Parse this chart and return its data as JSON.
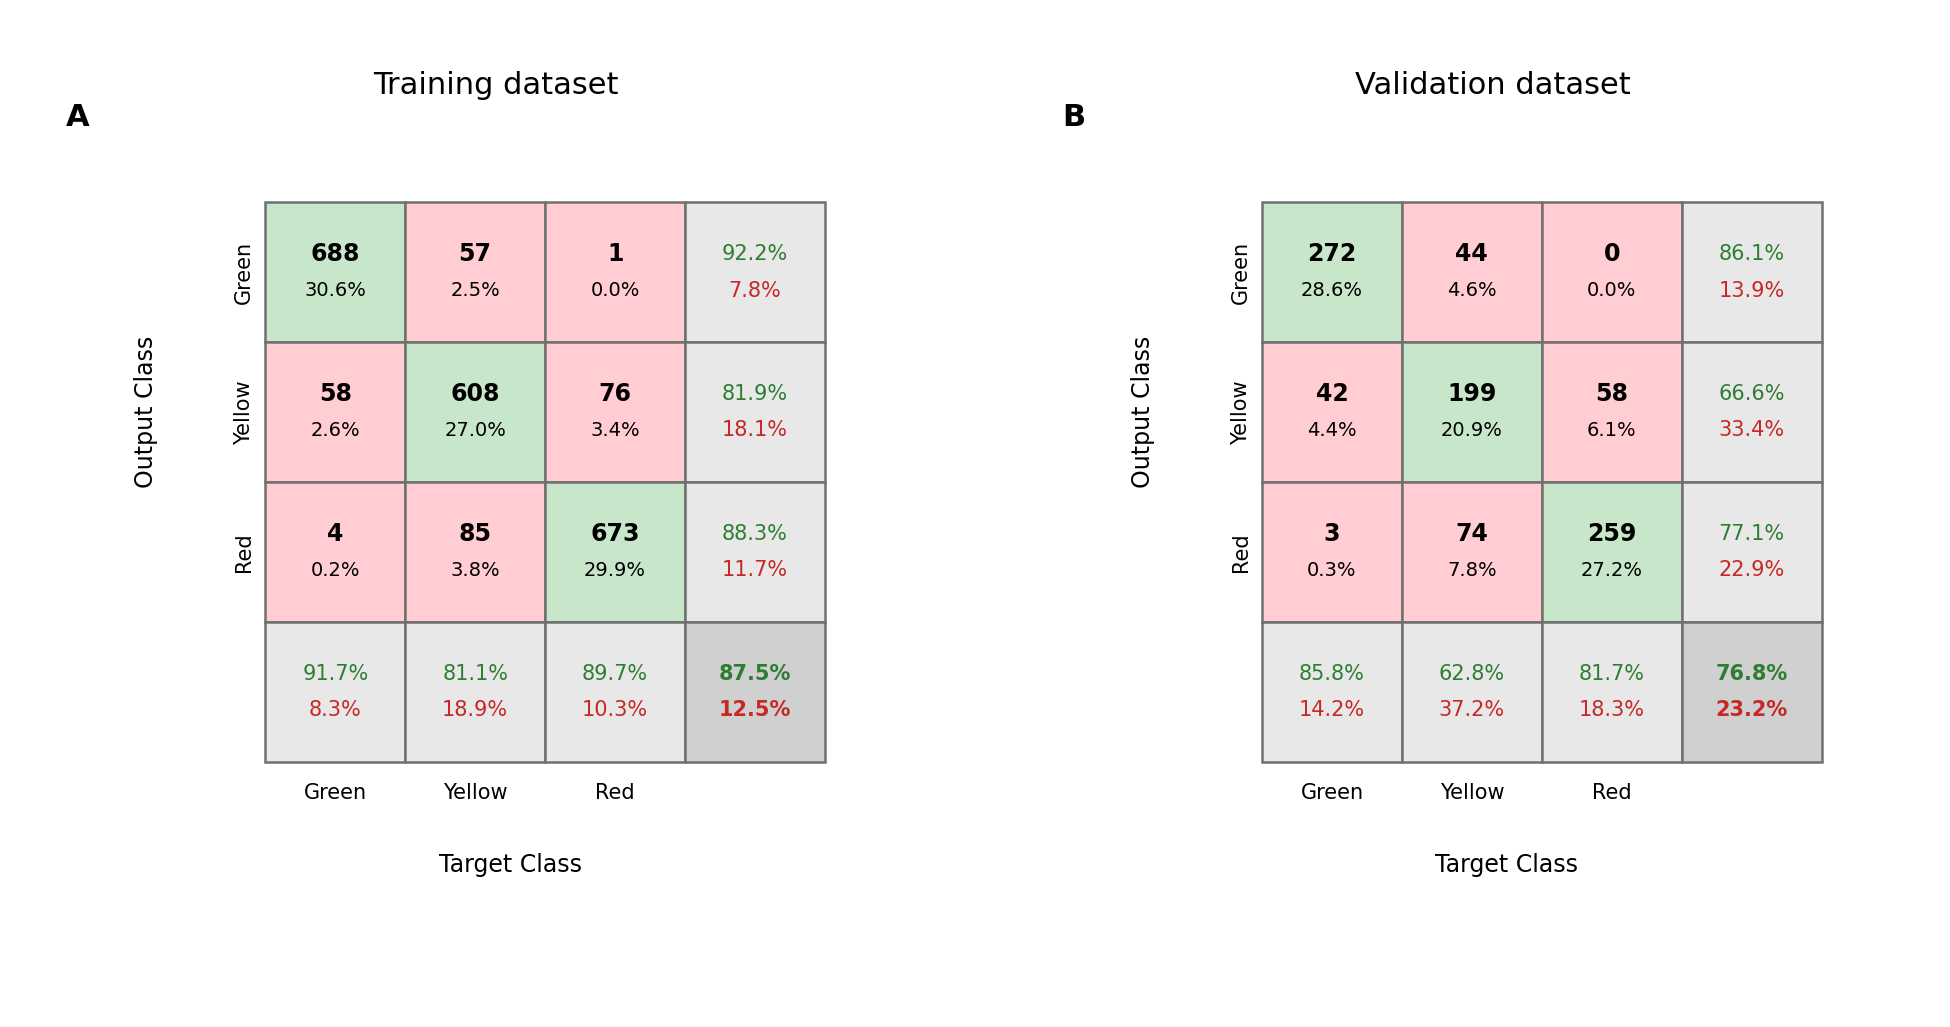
{
  "training": {
    "title": "Training dataset",
    "panel_label": "A",
    "matrix": [
      [
        688,
        57,
        1
      ],
      [
        58,
        608,
        76
      ],
      [
        4,
        85,
        673
      ]
    ],
    "matrix_pct": [
      [
        "30.6%",
        "2.5%",
        "0.0%"
      ],
      [
        "2.6%",
        "27.0%",
        "3.4%"
      ],
      [
        "0.2%",
        "3.8%",
        "29.9%"
      ]
    ],
    "row_pct_green": [
      "92.2%",
      "81.9%",
      "88.3%"
    ],
    "row_pct_red": [
      "7.8%",
      "18.1%",
      "11.7%"
    ],
    "col_pct_green": [
      "91.7%",
      "81.1%",
      "89.7%"
    ],
    "col_pct_red": [
      "8.3%",
      "18.9%",
      "10.3%"
    ],
    "overall_green": "87.5%",
    "overall_red": "12.5%",
    "overall_bold": true
  },
  "validation": {
    "title": "Validation dataset",
    "panel_label": "B",
    "matrix": [
      [
        272,
        44,
        0
      ],
      [
        42,
        199,
        58
      ],
      [
        3,
        74,
        259
      ]
    ],
    "matrix_pct": [
      [
        "28.6%",
        "4.6%",
        "0.0%"
      ],
      [
        "4.4%",
        "20.9%",
        "6.1%"
      ],
      [
        "0.3%",
        "7.8%",
        "27.2%"
      ]
    ],
    "row_pct_green": [
      "86.1%",
      "66.6%",
      "77.1%"
    ],
    "row_pct_red": [
      "13.9%",
      "33.4%",
      "22.9%"
    ],
    "col_pct_green": [
      "85.8%",
      "62.8%",
      "81.7%"
    ],
    "col_pct_red": [
      "14.2%",
      "37.2%",
      "18.3%"
    ],
    "overall_green": "76.8%",
    "overall_red": "23.2%",
    "overall_bold": true
  },
  "classes": [
    "Green",
    "Yellow",
    "Red"
  ],
  "green_color": "#c8e6c9",
  "red_color": "#ffcdd2",
  "gray_color": "#e8e8e8",
  "darker_gray_color": "#d0d0d0",
  "text_green": "#2e7d32",
  "text_red": "#c62828",
  "text_black": "#000000",
  "xlabel": "Target Class",
  "ylabel": "Output Class",
  "title_fontsize": 22,
  "label_fontsize": 17,
  "tick_fontsize": 15,
  "cell_fontsize_count": 17,
  "cell_fontsize_pct": 14,
  "summary_fontsize": 15,
  "panel_label_fontsize": 22
}
